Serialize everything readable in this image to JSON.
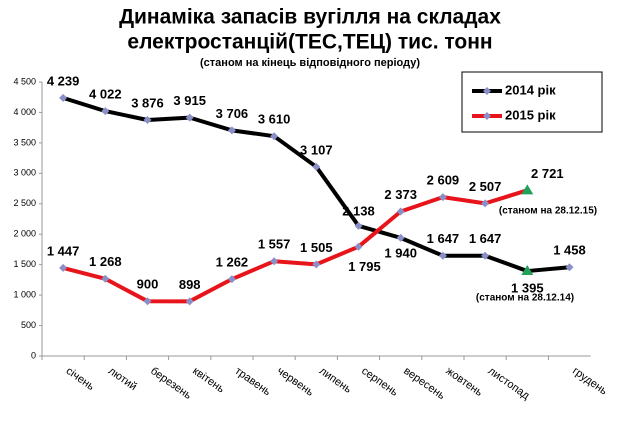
{
  "chart_data": {
    "type": "line",
    "title": [
      "Динаміка запасів вугілля на складах",
      "електростанцій(ТЕС,ТЕЦ) тис. тонн"
    ],
    "subtitle": "(станом на кінець відповідного періоду)",
    "categories": [
      "січень",
      "лютий",
      "березень",
      "квітень",
      "травень",
      "червень",
      "липень",
      "серпень",
      "вересень",
      "жовтень",
      "листопад",
      null,
      "грудень"
    ],
    "series": [
      {
        "name": "2014 рік",
        "color": "#000000",
        "values": [
          4239,
          4022,
          3876,
          3915,
          3706,
          3610,
          3107,
          2138,
          1940,
          1647,
          1647,
          1395,
          1458
        ],
        "value_labels": [
          "4 239",
          "4 022",
          "3 876",
          "3 915",
          "3 706",
          "3 610",
          "3 107",
          "2 138",
          "1 940",
          "1 647",
          "1 647",
          "1 395",
          "1 458"
        ]
      },
      {
        "name": "2015 рік",
        "color": "#e8141b",
        "values": [
          1447,
          1268,
          900,
          898,
          1262,
          1557,
          1505,
          1795,
          2373,
          2609,
          2507,
          2721,
          null
        ],
        "value_labels": [
          "1 447",
          "1 268",
          "900",
          "898",
          "1 262",
          "1 557",
          "1 505",
          "1 795",
          "2 373",
          "2 609",
          "2 507",
          "2 721",
          null
        ]
      }
    ],
    "annotations": [
      "(станом на  28.12.15)",
      "(станом на  28.12.14)"
    ],
    "ylim": [
      0,
      4500
    ],
    "yticks": [
      0,
      500,
      {
        "value": 1000,
        "label": "1 000"
      },
      {
        "value": 1500,
        "label": "1 500"
      },
      {
        "value": 2000,
        "label": "2 000"
      },
      {
        "value": 2500,
        "label": "2 500"
      },
      {
        "value": 3000,
        "label": "3 000"
      },
      {
        "value": 3500,
        "label": "3 500"
      },
      {
        "value": 4000,
        "label": "4 000"
      },
      {
        "value": 4500,
        "label": "4 500"
      }
    ],
    "marker_color": "#8a8fc8",
    "highlight_color": "#22a05a",
    "legend": "upper right"
  }
}
